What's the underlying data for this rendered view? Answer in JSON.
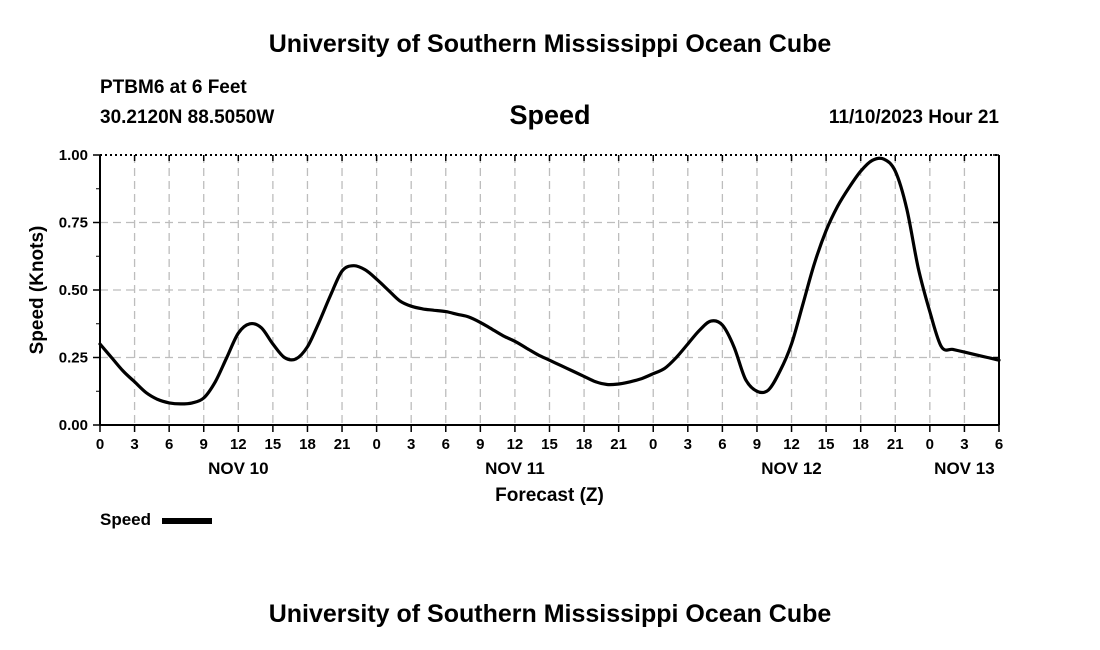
{
  "page": {
    "title_top": "University of Southern Mississippi Ocean Cube",
    "title_bottom": "University of Southern Mississippi Ocean Cube",
    "station": "PTBM6 at 6 Feet",
    "coords": "30.2120N  88.5050W",
    "plot_title": "Speed",
    "timestamp": "11/10/2023 Hour 21"
  },
  "legend": {
    "label": "Speed"
  },
  "chart_data": {
    "type": "line",
    "title": "Speed",
    "xlabel": "Forecast (Z)",
    "ylabel": "Speed (Knots)",
    "xlim": [
      0,
      78
    ],
    "ylim": [
      0,
      1.0
    ],
    "grid": true,
    "yticks": [
      0,
      0.25,
      0.5,
      0.75,
      1.0
    ],
    "ytick_labels": [
      "0.00",
      "0.25",
      "0.50",
      "0.75",
      "1.00"
    ],
    "xtick_labels": [
      "0",
      "3",
      "6",
      "9",
      "12",
      "15",
      "18",
      "21",
      "0",
      "3",
      "6",
      "9",
      "12",
      "15",
      "18",
      "21",
      "0",
      "3",
      "6",
      "9",
      "12",
      "15",
      "18",
      "21",
      "0",
      "3",
      "6"
    ],
    "date_labels": [
      {
        "text": "NOV 10",
        "hour": 12
      },
      {
        "text": "NOV 11",
        "hour": 36
      },
      {
        "text": "NOV 12",
        "hour": 60
      },
      {
        "text": "NOV 13",
        "hour": 75
      }
    ],
    "legend_position": "bottom-left",
    "series": [
      {
        "name": "Speed",
        "x": [
          0,
          1,
          2,
          3,
          4,
          5,
          6,
          7,
          8,
          9,
          10,
          11,
          12,
          13,
          14,
          15,
          16,
          17,
          18,
          19,
          20,
          21,
          22,
          23,
          24,
          25,
          26,
          27,
          28,
          29,
          30,
          31,
          32,
          33,
          34,
          35,
          36,
          37,
          38,
          39,
          40,
          41,
          42,
          43,
          44,
          45,
          46,
          47,
          48,
          49,
          50,
          51,
          52,
          53,
          54,
          55,
          56,
          57,
          58,
          59,
          60,
          61,
          62,
          63,
          64,
          65,
          66,
          67,
          68,
          69,
          70,
          71,
          72,
          73,
          74,
          75,
          76,
          77,
          78
        ],
        "values": [
          0.3,
          0.25,
          0.2,
          0.16,
          0.12,
          0.095,
          0.082,
          0.078,
          0.082,
          0.1,
          0.16,
          0.25,
          0.34,
          0.375,
          0.36,
          0.3,
          0.25,
          0.245,
          0.29,
          0.38,
          0.48,
          0.57,
          0.59,
          0.575,
          0.54,
          0.5,
          0.46,
          0.44,
          0.43,
          0.425,
          0.42,
          0.41,
          0.4,
          0.38,
          0.355,
          0.33,
          0.31,
          0.285,
          0.26,
          0.24,
          0.22,
          0.2,
          0.18,
          0.16,
          0.15,
          0.152,
          0.16,
          0.172,
          0.19,
          0.21,
          0.25,
          0.3,
          0.35,
          0.385,
          0.37,
          0.29,
          0.17,
          0.125,
          0.13,
          0.2,
          0.3,
          0.45,
          0.6,
          0.72,
          0.81,
          0.88,
          0.94,
          0.98,
          0.985,
          0.94,
          0.8,
          0.58,
          0.42,
          0.29,
          0.28,
          0.27,
          0.26,
          0.25,
          0.24
        ]
      }
    ]
  }
}
